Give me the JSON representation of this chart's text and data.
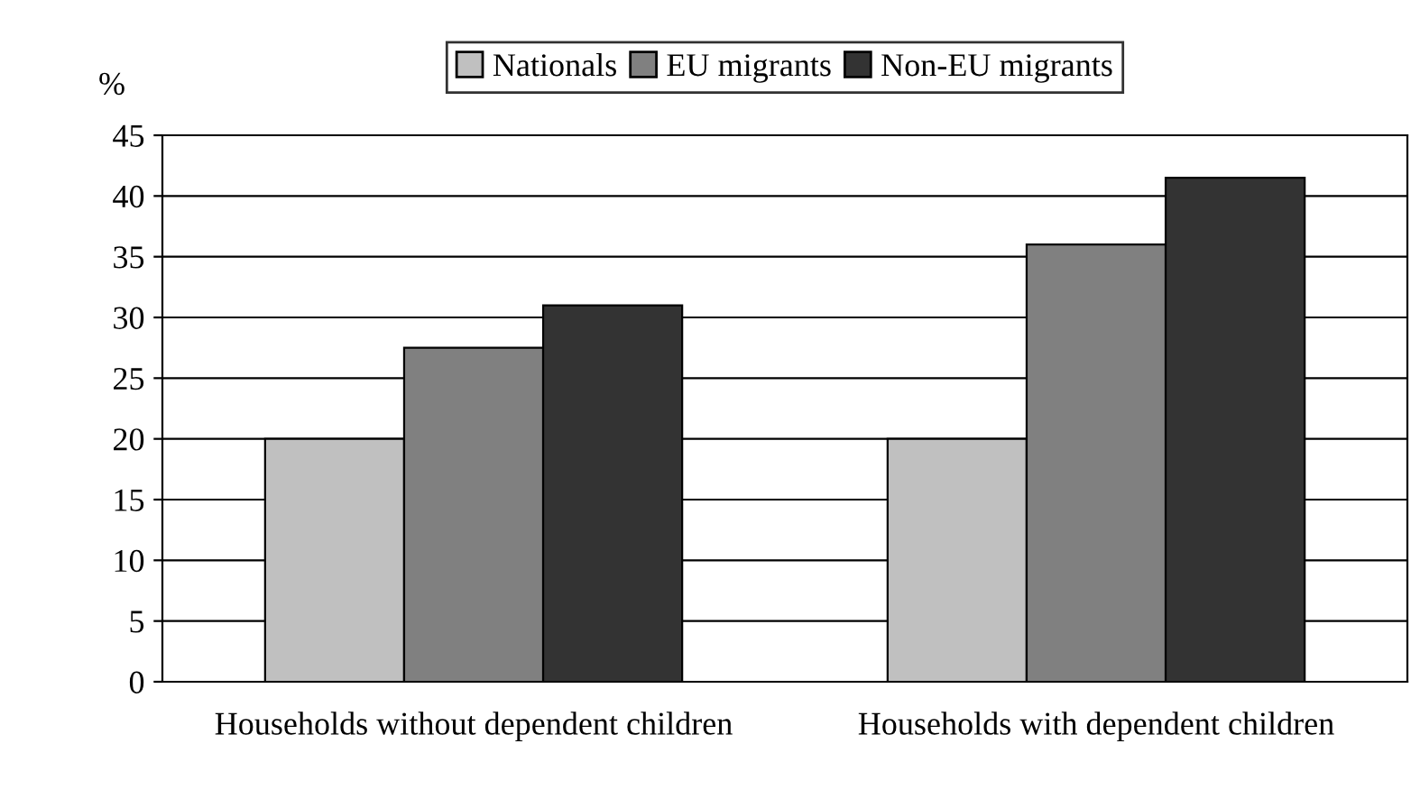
{
  "chart_data": {
    "type": "bar",
    "ylabel": "%",
    "categories": [
      "Households without dependent children",
      "Households with dependent children"
    ],
    "series": [
      {
        "name": "Nationals",
        "color": "#c0c0c0",
        "values": [
          20,
          20
        ]
      },
      {
        "name": "EU migrants",
        "color": "#808080",
        "values": [
          27.5,
          36
        ]
      },
      {
        "name": "Non-EU migrants",
        "color": "#333333",
        "values": [
          31,
          41.5
        ]
      }
    ],
    "ylim": [
      0,
      45
    ],
    "yticks": [
      0,
      5,
      10,
      15,
      20,
      25,
      30,
      35,
      40,
      45
    ],
    "grid": "y",
    "legend": "top"
  }
}
